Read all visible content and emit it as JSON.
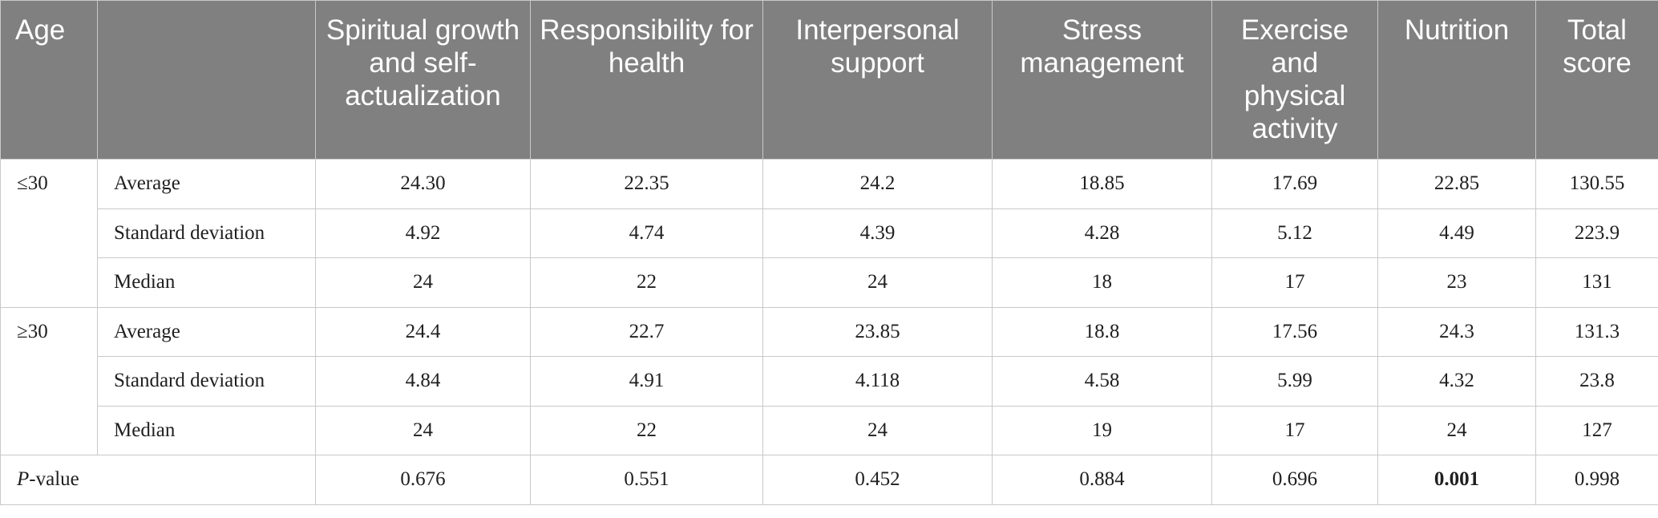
{
  "headers": {
    "age": "Age",
    "stat": "",
    "spiritual": "Spiritual growth and self-actualization",
    "responsibility": "Responsibility for health",
    "interpersonal": "Interpersonal support",
    "stress": "Stress management",
    "exercise": "Exercise and physical activity",
    "nutrition": "Nutrition",
    "total": "Total score"
  },
  "groups": [
    {
      "label": "≤30",
      "rows": [
        {
          "stat": "Average",
          "values": [
            "24.30",
            "22.35",
            "24.2",
            "18.85",
            "17.69",
            "22.85",
            "130.55"
          ]
        },
        {
          "stat": "Standard deviation",
          "values": [
            "4.92",
            "4.74",
            "4.39",
            "4.28",
            "5.12",
            "4.49",
            "223.9"
          ]
        },
        {
          "stat": "Median",
          "values": [
            "24",
            "22",
            "24",
            "18",
            "17",
            "23",
            "131"
          ]
        }
      ]
    },
    {
      "label": "≥30",
      "rows": [
        {
          "stat": "Average",
          "values": [
            "24.4",
            "22.7",
            "23.85",
            "18.8",
            "17.56",
            "24.3",
            "131.3"
          ]
        },
        {
          "stat": "Standard deviation",
          "values": [
            "4.84",
            "4.91",
            "4.118",
            "4.58",
            "5.99",
            "4.32",
            "23.8"
          ]
        },
        {
          "stat": "Median",
          "values": [
            "24",
            "22",
            "24",
            "19",
            "17",
            "24",
            "127"
          ]
        }
      ]
    }
  ],
  "pvalue": {
    "label_italic": "P",
    "label_rest": "-value",
    "values": [
      "0.676",
      "0.551",
      "0.452",
      "0.884",
      "0.696",
      "0.001",
      "0.998"
    ]
  }
}
